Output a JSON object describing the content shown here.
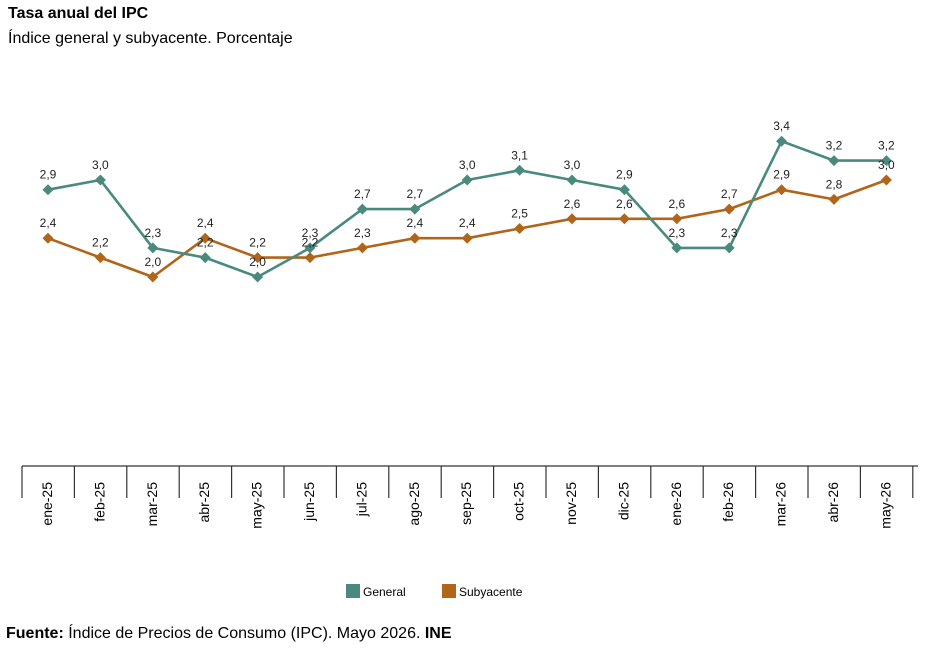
{
  "header": {
    "title": "Tasa anual del IPC",
    "subtitle": "Índice general y subyacente. Porcentaje"
  },
  "footer": {
    "label": "Fuente:",
    "text": "Índice de Precios de Consumo (IPC). Mayo 2026.",
    "org": "INE"
  },
  "chart_data": {
    "type": "line",
    "categories": [
      "ene-25",
      "feb-25",
      "mar-25",
      "abr-25",
      "may-25",
      "jun-25",
      "jul-25",
      "ago-25",
      "sep-25",
      "oct-25",
      "nov-25",
      "dic-25",
      "ene-26",
      "feb-26",
      "mar-26",
      "abr-26",
      "may-26"
    ],
    "series": [
      {
        "name": "General",
        "color": "#4a8a7e",
        "values": [
          2.9,
          3.0,
          2.3,
          2.2,
          2.0,
          2.3,
          2.7,
          2.7,
          3.0,
          3.1,
          3.0,
          2.9,
          2.3,
          2.3,
          3.4,
          3.2,
          3.2
        ],
        "labels": [
          "2,9",
          "3,0",
          "2,3",
          "2,2",
          "2,0",
          "2,3",
          "2,7",
          "2,7",
          "3,0",
          "3,1",
          "3,0",
          "2,9",
          "2,3",
          "2,3",
          "3,4",
          "3,2",
          "3,2"
        ]
      },
      {
        "name": "Subyacente",
        "color": "#b0651a",
        "values": [
          2.4,
          2.2,
          2.0,
          2.4,
          2.2,
          2.2,
          2.3,
          2.4,
          2.4,
          2.5,
          2.6,
          2.6,
          2.6,
          2.7,
          2.9,
          2.8,
          3.0
        ],
        "labels": [
          "2,4",
          "2,2",
          "2,0",
          "2,4",
          "2,2",
          "2,2",
          "2,3",
          "2,4",
          "2,4",
          "2,5",
          "2,6",
          "2,6",
          "2,6",
          "2,7",
          "2,9",
          "2,8",
          "3,0"
        ]
      }
    ],
    "legend": "bottom-center",
    "grid": false
  }
}
